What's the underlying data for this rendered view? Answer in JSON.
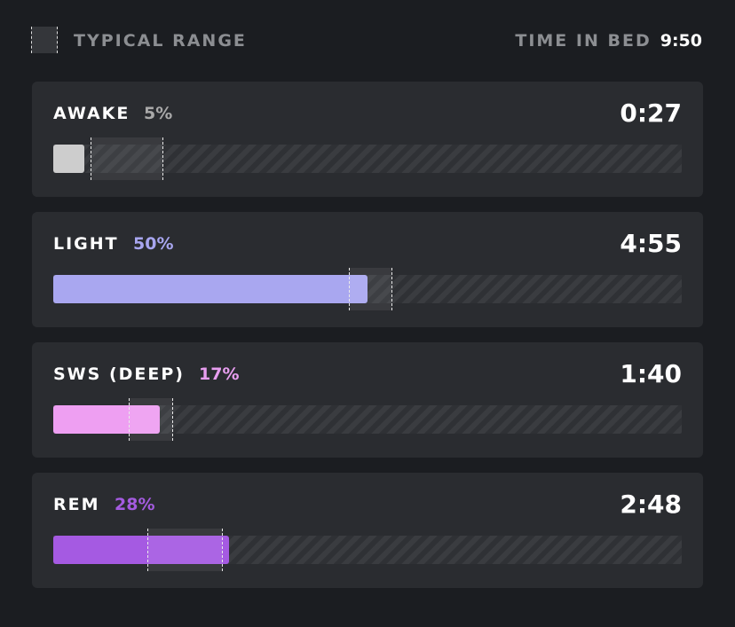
{
  "legend": {
    "label": "TYPICAL RANGE"
  },
  "time_in_bed": {
    "label": "TIME IN BED",
    "value": "9:50"
  },
  "stages": [
    {
      "name": "AWAKE",
      "percent": {
        "value": 5,
        "label": "5%"
      },
      "duration": "0:27",
      "color": "#cdcdcd",
      "label_color": "#a9a9a9",
      "typical_range": [
        6,
        17.5
      ]
    },
    {
      "name": "LIGHT",
      "percent": {
        "value": 50,
        "label": "50%"
      },
      "duration": "4:55",
      "color": "#a9a7f0",
      "label_color": "#a8a6f0",
      "typical_range": [
        47,
        54
      ]
    },
    {
      "name": "SWS (DEEP)",
      "percent": {
        "value": 17,
        "label": "17%"
      },
      "duration": "1:40",
      "color": "#ee9ff2",
      "label_color": "#e89ef0",
      "typical_range": [
        12,
        19
      ]
    },
    {
      "name": "REM",
      "percent": {
        "value": 28,
        "label": "28%"
      },
      "duration": "2:48",
      "color": "#a55ae2",
      "label_color": "#a45be0",
      "typical_range": [
        15,
        27
      ]
    }
  ]
}
